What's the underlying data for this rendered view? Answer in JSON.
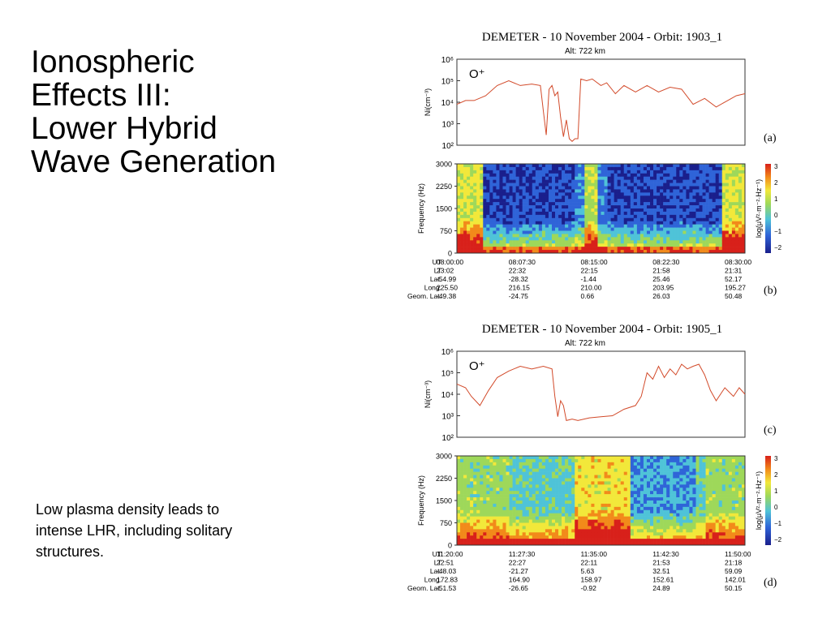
{
  "slide": {
    "title_lines": [
      "Ionospheric",
      "Effects III:",
      "Lower Hybrid",
      "Wave Generation"
    ],
    "caption_lines": [
      "Low plasma density leads to",
      "intense LHR, including solitary",
      "structures."
    ]
  },
  "colors": {
    "density_line": "#d24a2a",
    "spectrogram_scale": [
      "#1a1f8c",
      "#2f64d8",
      "#4fc3d8",
      "#9ed85a",
      "#f2e83a",
      "#f28a1a",
      "#d8201a"
    ]
  },
  "chart_data": [
    {
      "type": "line",
      "label": "(a)",
      "title": "DEMETER  -  10 November 2004  -  Orbit: 1903_1",
      "subtitle": "Alt: 722 km",
      "ylabel": "Ni(cm⁻³)",
      "ion": "O⁺",
      "y_scale": "log",
      "ylim": [
        100,
        1000000
      ],
      "y_ticks": [
        "10²",
        "10³",
        "10⁴",
        "10⁵",
        "10⁶"
      ],
      "x": [
        0,
        3,
        6,
        10,
        14,
        18,
        22,
        26,
        29,
        30,
        31,
        32,
        33,
        34,
        35,
        36,
        37,
        38,
        39,
        40,
        41,
        42,
        43,
        45,
        47,
        50,
        52,
        55,
        58,
        62,
        66,
        70,
        74,
        78,
        82,
        86,
        90,
        94,
        97,
        100
      ],
      "y": [
        8000,
        12000,
        12000,
        20000,
        60000,
        100000,
        60000,
        70000,
        60000,
        4000,
        300,
        40000,
        60000,
        20000,
        30000,
        2000,
        250,
        1500,
        200,
        150,
        200,
        200,
        120000,
        100000,
        120000,
        60000,
        80000,
        25000,
        60000,
        30000,
        60000,
        30000,
        50000,
        40000,
        8000,
        15000,
        6000,
        12000,
        20000,
        25000
      ]
    },
    {
      "type": "heatmap",
      "label": "(b)",
      "ylabel": "Frequency (Hz)",
      "y_ticks": [
        "0",
        "750",
        "1500",
        "2250",
        "3000"
      ],
      "colorbar_label": "log(μV²·m⁻²·Hz⁻¹)",
      "colorbar_ticks": [
        "3",
        "2",
        "1",
        "0",
        "−1",
        "−2"
      ],
      "row_labels": [
        "UT",
        "LT",
        "Lat.",
        "Long.",
        "Geom. Lat."
      ],
      "columns": [
        [
          "08:00:00",
          "23:02",
          "-54.99",
          "225.50",
          "-49.38"
        ],
        [
          "08:07:30",
          "22:32",
          "-28.32",
          "216.15",
          "-24.75"
        ],
        [
          "08:15:00",
          "22:15",
          "-1.44",
          "210.00",
          "0.66"
        ],
        [
          "08:22:30",
          "21:58",
          "25.46",
          "203.95",
          "26.03"
        ],
        [
          "08:30:00",
          "21:31",
          "52.17",
          "195.27",
          "50.48"
        ]
      ]
    },
    {
      "type": "line",
      "label": "(c)",
      "title": "DEMETER  -  10 November 2004  -  Orbit: 1905_1",
      "subtitle": "Alt: 722 km",
      "ylabel": "Ni(cm⁻³)",
      "ion": "O⁺",
      "y_scale": "log",
      "ylim": [
        100,
        1000000
      ],
      "y_ticks": [
        "10²",
        "10³",
        "10⁴",
        "10⁵",
        "10⁶"
      ],
      "x": [
        0,
        3,
        5,
        8,
        11,
        14,
        18,
        22,
        26,
        30,
        33,
        34,
        35,
        36,
        37,
        38,
        40,
        42,
        46,
        50,
        54,
        58,
        62,
        64,
        66,
        68,
        70,
        72,
        74,
        76,
        78,
        80,
        82,
        84,
        86,
        88,
        90,
        93,
        96,
        98,
        100
      ],
      "y": [
        30000,
        20000,
        8000,
        3000,
        15000,
        60000,
        120000,
        200000,
        150000,
        200000,
        150000,
        8000,
        900,
        5000,
        3000,
        600,
        700,
        600,
        800,
        900,
        1000,
        2000,
        3000,
        8000,
        100000,
        50000,
        200000,
        60000,
        150000,
        80000,
        250000,
        150000,
        200000,
        250000,
        80000,
        15000,
        5000,
        20000,
        8000,
        20000,
        10000
      ]
    },
    {
      "type": "heatmap",
      "label": "(d)",
      "ylabel": "Frequency (Hz)",
      "y_ticks": [
        "0",
        "750",
        "1500",
        "2250",
        "3000"
      ],
      "colorbar_label": "log(μV²·m⁻²·Hz⁻¹)",
      "colorbar_ticks": [
        "3",
        "2",
        "1",
        "0",
        "−1",
        "−2"
      ],
      "row_labels": [
        "UT",
        "LT",
        "Lat.",
        "Long.",
        "Geom. Lat."
      ],
      "columns": [
        [
          "11:20:00",
          "22:51",
          "-48.03",
          "172.83",
          "-51.53"
        ],
        [
          "11:27:30",
          "22:27",
          "-21.27",
          "164.90",
          "-26.65"
        ],
        [
          "11:35:00",
          "22:11",
          "5.63",
          "158.97",
          "-0.92"
        ],
        [
          "11:42:30",
          "21:53",
          "32.51",
          "152.61",
          "24.89"
        ],
        [
          "11:50:00",
          "21:18",
          "59.09",
          "142.01",
          "50.15"
        ]
      ]
    }
  ]
}
